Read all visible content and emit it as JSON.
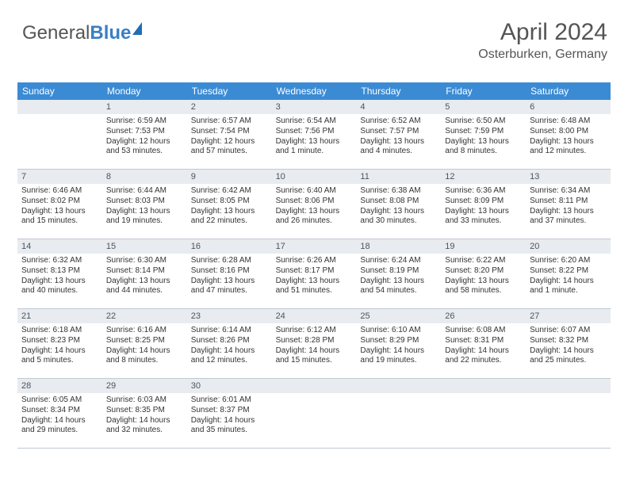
{
  "logo": {
    "text1": "General",
    "text2": "Blue"
  },
  "header": {
    "title": "April 2024",
    "location": "Osterburken, Germany"
  },
  "day_labels": [
    "Sunday",
    "Monday",
    "Tuesday",
    "Wednesday",
    "Thursday",
    "Friday",
    "Saturday"
  ],
  "colors": {
    "header_bg": "#3b8bd4",
    "header_fg": "#ffffff",
    "daynum_bg": "#e8ebef",
    "border": "#bfc9d4",
    "text": "#333333",
    "logo_gray": "#555555",
    "logo_blue": "#3b7fc4"
  },
  "fonts": {
    "title_pt": 30,
    "location_pt": 16,
    "dayhdr_pt": 12,
    "daynum_pt": 11,
    "cell_pt": 10
  },
  "layout": {
    "cols": 7,
    "rows": 5,
    "first_weekday_col": 1
  },
  "days": [
    {
      "n": 1,
      "sr": "6:59 AM",
      "ss": "7:53 PM",
      "dl": "12 hours and 53 minutes."
    },
    {
      "n": 2,
      "sr": "6:57 AM",
      "ss": "7:54 PM",
      "dl": "12 hours and 57 minutes."
    },
    {
      "n": 3,
      "sr": "6:54 AM",
      "ss": "7:56 PM",
      "dl": "13 hours and 1 minute."
    },
    {
      "n": 4,
      "sr": "6:52 AM",
      "ss": "7:57 PM",
      "dl": "13 hours and 4 minutes."
    },
    {
      "n": 5,
      "sr": "6:50 AM",
      "ss": "7:59 PM",
      "dl": "13 hours and 8 minutes."
    },
    {
      "n": 6,
      "sr": "6:48 AM",
      "ss": "8:00 PM",
      "dl": "13 hours and 12 minutes."
    },
    {
      "n": 7,
      "sr": "6:46 AM",
      "ss": "8:02 PM",
      "dl": "13 hours and 15 minutes."
    },
    {
      "n": 8,
      "sr": "6:44 AM",
      "ss": "8:03 PM",
      "dl": "13 hours and 19 minutes."
    },
    {
      "n": 9,
      "sr": "6:42 AM",
      "ss": "8:05 PM",
      "dl": "13 hours and 22 minutes."
    },
    {
      "n": 10,
      "sr": "6:40 AM",
      "ss": "8:06 PM",
      "dl": "13 hours and 26 minutes."
    },
    {
      "n": 11,
      "sr": "6:38 AM",
      "ss": "8:08 PM",
      "dl": "13 hours and 30 minutes."
    },
    {
      "n": 12,
      "sr": "6:36 AM",
      "ss": "8:09 PM",
      "dl": "13 hours and 33 minutes."
    },
    {
      "n": 13,
      "sr": "6:34 AM",
      "ss": "8:11 PM",
      "dl": "13 hours and 37 minutes."
    },
    {
      "n": 14,
      "sr": "6:32 AM",
      "ss": "8:13 PM",
      "dl": "13 hours and 40 minutes."
    },
    {
      "n": 15,
      "sr": "6:30 AM",
      "ss": "8:14 PM",
      "dl": "13 hours and 44 minutes."
    },
    {
      "n": 16,
      "sr": "6:28 AM",
      "ss": "8:16 PM",
      "dl": "13 hours and 47 minutes."
    },
    {
      "n": 17,
      "sr": "6:26 AM",
      "ss": "8:17 PM",
      "dl": "13 hours and 51 minutes."
    },
    {
      "n": 18,
      "sr": "6:24 AM",
      "ss": "8:19 PM",
      "dl": "13 hours and 54 minutes."
    },
    {
      "n": 19,
      "sr": "6:22 AM",
      "ss": "8:20 PM",
      "dl": "13 hours and 58 minutes."
    },
    {
      "n": 20,
      "sr": "6:20 AM",
      "ss": "8:22 PM",
      "dl": "14 hours and 1 minute."
    },
    {
      "n": 21,
      "sr": "6:18 AM",
      "ss": "8:23 PM",
      "dl": "14 hours and 5 minutes."
    },
    {
      "n": 22,
      "sr": "6:16 AM",
      "ss": "8:25 PM",
      "dl": "14 hours and 8 minutes."
    },
    {
      "n": 23,
      "sr": "6:14 AM",
      "ss": "8:26 PM",
      "dl": "14 hours and 12 minutes."
    },
    {
      "n": 24,
      "sr": "6:12 AM",
      "ss": "8:28 PM",
      "dl": "14 hours and 15 minutes."
    },
    {
      "n": 25,
      "sr": "6:10 AM",
      "ss": "8:29 PM",
      "dl": "14 hours and 19 minutes."
    },
    {
      "n": 26,
      "sr": "6:08 AM",
      "ss": "8:31 PM",
      "dl": "14 hours and 22 minutes."
    },
    {
      "n": 27,
      "sr": "6:07 AM",
      "ss": "8:32 PM",
      "dl": "14 hours and 25 minutes."
    },
    {
      "n": 28,
      "sr": "6:05 AM",
      "ss": "8:34 PM",
      "dl": "14 hours and 29 minutes."
    },
    {
      "n": 29,
      "sr": "6:03 AM",
      "ss": "8:35 PM",
      "dl": "14 hours and 32 minutes."
    },
    {
      "n": 30,
      "sr": "6:01 AM",
      "ss": "8:37 PM",
      "dl": "14 hours and 35 minutes."
    }
  ],
  "labels": {
    "sunrise": "Sunrise:",
    "sunset": "Sunset:",
    "daylight": "Daylight:"
  }
}
